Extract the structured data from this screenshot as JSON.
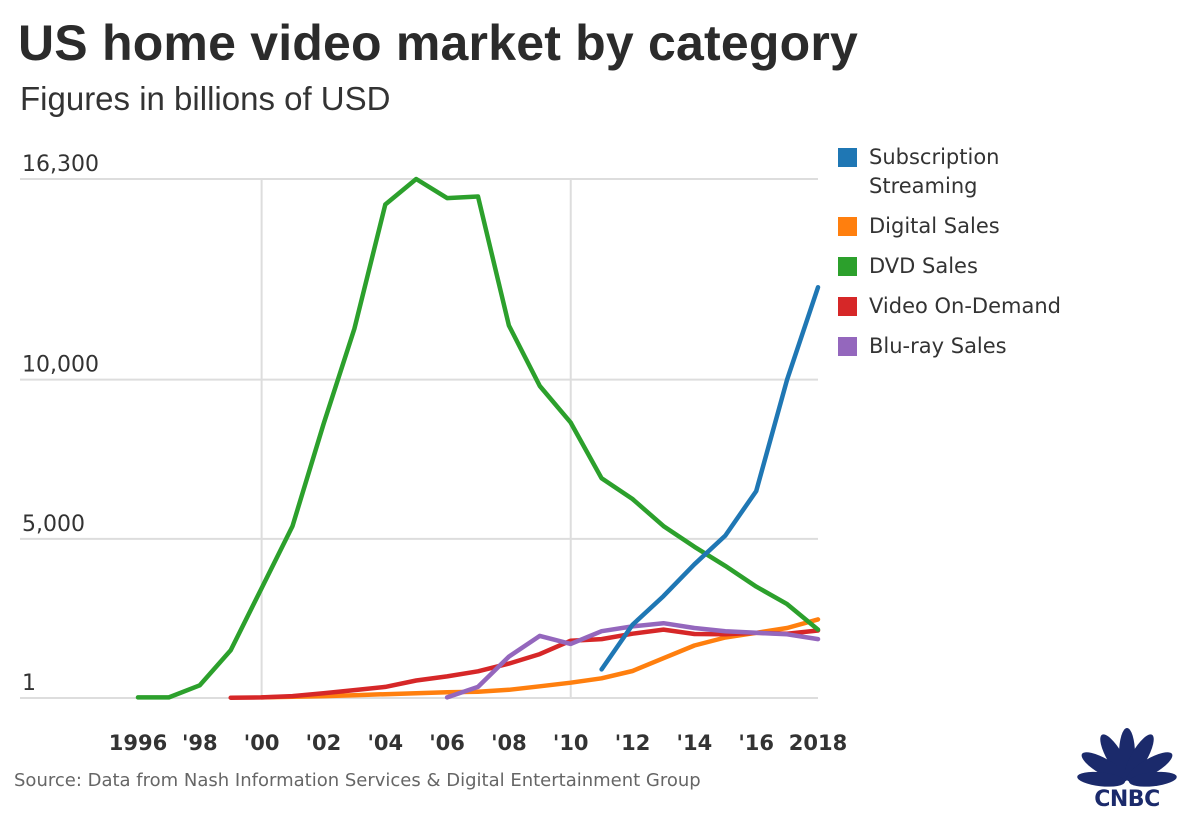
{
  "title": "US home video market by category",
  "subtitle": "Figures in billions of USD",
  "source": "Source: Data from Nash Information Services & Digital Entertainment Group",
  "logo_text": "CNBC",
  "chart_data": {
    "type": "line",
    "title": "US home video market by category",
    "subtitle": "Figures in billions of USD",
    "xlabel": "",
    "ylabel": "",
    "xlim": [
      1996,
      2018
    ],
    "ylim": [
      1,
      16300
    ],
    "y_ticks": [
      {
        "value": 1,
        "label": "1"
      },
      {
        "value": 5000,
        "label": "5,000"
      },
      {
        "value": 10000,
        "label": "10,000"
      },
      {
        "value": 16300,
        "label": "16,300"
      }
    ],
    "x_ticks": [
      {
        "value": 1996,
        "label": "1996"
      },
      {
        "value": 1998,
        "label": "'98"
      },
      {
        "value": 2000,
        "label": "'00"
      },
      {
        "value": 2002,
        "label": "'02"
      },
      {
        "value": 2004,
        "label": "'04"
      },
      {
        "value": 2006,
        "label": "'06"
      },
      {
        "value": 2008,
        "label": "'08"
      },
      {
        "value": 2010,
        "label": "'10"
      },
      {
        "value": 2012,
        "label": "'12"
      },
      {
        "value": 2014,
        "label": "'14"
      },
      {
        "value": 2016,
        "label": "'16"
      },
      {
        "value": 2018,
        "label": "2018"
      }
    ],
    "vertical_grid": [
      2000,
      2010
    ],
    "grid": true,
    "legend_position": "right",
    "series": [
      {
        "name": "Subscription Streaming",
        "color": "#1f77b4",
        "x": [
          2011,
          2012,
          2013,
          2014,
          2015,
          2016,
          2017,
          2018
        ],
        "values": [
          900,
          2300,
          3200,
          4200,
          5100,
          6500,
          10000,
          12900
        ]
      },
      {
        "name": "Digital Sales",
        "color": "#ff7f0e",
        "x": [
          2000,
          2001,
          2002,
          2003,
          2004,
          2005,
          2006,
          2007,
          2008,
          2009,
          2010,
          2011,
          2012,
          2013,
          2014,
          2015,
          2016,
          2017,
          2018
        ],
        "values": [
          20,
          40,
          60,
          90,
          120,
          150,
          180,
          200,
          260,
          370,
          480,
          620,
          850,
          1250,
          1650,
          1900,
          2050,
          2200,
          2470
        ]
      },
      {
        "name": "DVD Sales",
        "color": "#2ca02c",
        "x": [
          1996,
          1997,
          1998,
          1999,
          2000,
          2001,
          2002,
          2003,
          2004,
          2005,
          2006,
          2007,
          2008,
          2009,
          2010,
          2011,
          2012,
          2013,
          2014,
          2015,
          2016,
          2017,
          2018
        ],
        "values": [
          20,
          20,
          400,
          1500,
          3450,
          5400,
          8600,
          11600,
          15500,
          16300,
          15700,
          15750,
          11700,
          9800,
          8650,
          6900,
          6250,
          5400,
          4750,
          4150,
          3500,
          2950,
          2150
        ]
      },
      {
        "name": "Video On-Demand",
        "color": "#d62728",
        "x": [
          1999,
          2000,
          2001,
          2002,
          2003,
          2004,
          2005,
          2006,
          2007,
          2008,
          2009,
          2010,
          2011,
          2012,
          2013,
          2014,
          2015,
          2016,
          2017,
          2018
        ],
        "values": [
          10,
          20,
          60,
          150,
          250,
          350,
          550,
          680,
          840,
          1080,
          1380,
          1800,
          1850,
          2020,
          2150,
          2010,
          2000,
          2050,
          2020,
          2120
        ]
      },
      {
        "name": "Blu-ray Sales",
        "color": "#9467bd",
        "x": [
          2006,
          2007,
          2008,
          2009,
          2010,
          2011,
          2012,
          2013,
          2014,
          2015,
          2016,
          2017,
          2018
        ],
        "values": [
          20,
          350,
          1300,
          1950,
          1700,
          2100,
          2250,
          2350,
          2200,
          2100,
          2050,
          2000,
          1850
        ]
      }
    ]
  }
}
